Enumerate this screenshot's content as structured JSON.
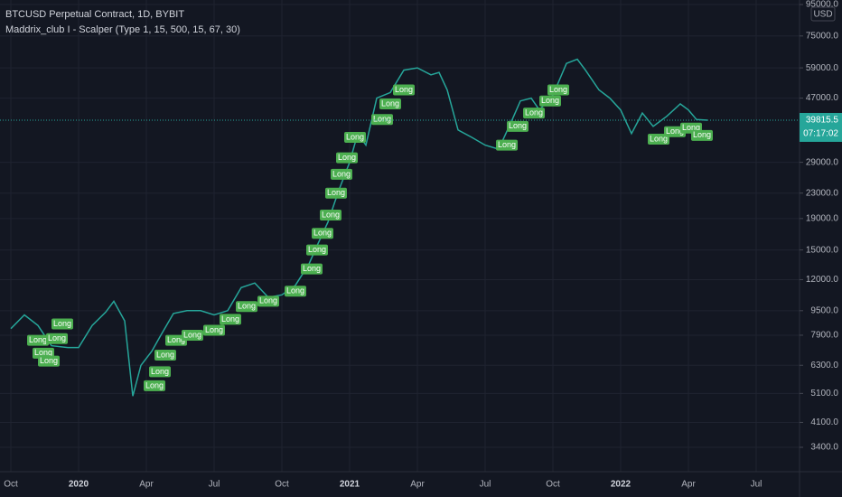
{
  "chart_data": {
    "type": "line",
    "title": "BTCUSD Perpetual Contract, 1D, BYBIT",
    "subtitle": "Maddrix_club I - Scalper (Type 1, 15, 500, 15, 67, 30)",
    "currency": "USD",
    "log_scale": true,
    "grid": true,
    "color": "#26a69a",
    "x": [
      2019.75,
      2019.8,
      2019.85,
      2019.9,
      2019.96,
      2020.0,
      2020.05,
      2020.1,
      2020.13,
      2020.17,
      2020.2,
      2020.23,
      2020.27,
      2020.3,
      2020.35,
      2020.4,
      2020.45,
      2020.5,
      2020.55,
      2020.6,
      2020.65,
      2020.7,
      2020.75,
      2020.8,
      2020.85,
      2020.88,
      2020.92,
      2020.96,
      2021.0,
      2021.03,
      2021.06,
      2021.1,
      2021.15,
      2021.2,
      2021.25,
      2021.3,
      2021.33,
      2021.36,
      2021.4,
      2021.45,
      2021.5,
      2021.55,
      2021.6,
      2021.63,
      2021.67,
      2021.7,
      2021.75,
      2021.8,
      2021.84,
      2021.87,
      2021.92,
      2021.96,
      2022.0,
      2022.04,
      2022.08,
      2022.12,
      2022.17,
      2022.22,
      2022.25,
      2022.28,
      2022.32
    ],
    "values": [
      8300,
      9200,
      8500,
      7300,
      7200,
      7200,
      8500,
      9400,
      10200,
      8800,
      5000,
      6300,
      7000,
      7800,
      9300,
      9500,
      9500,
      9200,
      9500,
      11300,
      11700,
      10500,
      10700,
      11500,
      13500,
      15500,
      18500,
      23500,
      29000,
      36000,
      33000,
      47000,
      49000,
      58000,
      59000,
      56000,
      57000,
      50000,
      37000,
      35000,
      33000,
      32000,
      40000,
      46000,
      47000,
      43000,
      48000,
      61000,
      63000,
      58000,
      50000,
      47000,
      43000,
      36000,
      42000,
      38000,
      41000,
      45000,
      43000,
      40000,
      39815.5
    ],
    "signals": {
      "label": "Long",
      "color": "#4caf50",
      "x": [
        2019.85,
        2019.87,
        2019.89,
        2019.92,
        2019.94,
        2020.28,
        2020.3,
        2020.32,
        2020.36,
        2020.42,
        2020.5,
        2020.56,
        2020.62,
        2020.7,
        2020.8,
        2020.86,
        2020.88,
        2020.9,
        2020.93,
        2020.95,
        2020.97,
        2020.99,
        2021.02,
        2021.12,
        2021.15,
        2021.2,
        2021.58,
        2021.62,
        2021.68,
        2021.74,
        2021.77,
        2022.14,
        2022.2,
        2022.26,
        2022.3
      ],
      "y": [
        7600,
        6900,
        6500,
        7700,
        8600,
        5400,
        6000,
        6800,
        7600,
        7900,
        8200,
        8900,
        9800,
        10200,
        11000,
        13000,
        15000,
        17000,
        19500,
        23000,
        26500,
        30000,
        35000,
        40000,
        45000,
        50000,
        33000,
        38000,
        42000,
        46000,
        50000,
        34500,
        36500,
        37500,
        35500
      ]
    },
    "current_price": 39815.5,
    "countdown": "07:17:02",
    "xlim": [
      2019.71,
      2022.66
    ],
    "xticks": [
      {
        "value": 2019.75,
        "label": "Oct"
      },
      2020,
      {
        "value": 2020.25,
        "label": "Apr"
      },
      {
        "value": 2020.5,
        "label": "Jul"
      },
      {
        "value": 2020.75,
        "label": "Oct"
      },
      2021,
      {
        "value": 2021.25,
        "label": "Apr"
      },
      {
        "value": 2021.5,
        "label": "Jul"
      },
      {
        "value": 2021.75,
        "label": "Oct"
      },
      2022,
      {
        "value": 2022.25,
        "label": "Apr"
      },
      {
        "value": 2022.5,
        "label": "Jul"
      }
    ],
    "ylim": [
      2830,
      98300
    ],
    "yticks": [
      {
        "value": 95000,
        "label": "95000.0"
      },
      {
        "value": 75000,
        "label": "75000.0"
      },
      {
        "value": 59000,
        "label": "59000.0"
      },
      {
        "value": 47000,
        "label": "47000.0"
      },
      {
        "value": 29000,
        "label": "29000.0"
      },
      {
        "value": 23000,
        "label": "23000.0"
      },
      {
        "value": 19000,
        "label": "19000.0"
      },
      {
        "value": 15000,
        "label": "15000.0"
      },
      {
        "value": 12000,
        "label": "12000.0"
      },
      {
        "value": 9500,
        "label": "9500.0"
      },
      {
        "value": 7900,
        "label": "7900.0"
      },
      {
        "value": 6300,
        "label": "6300.0"
      },
      {
        "value": 5100,
        "label": "5100.0"
      },
      {
        "value": 4100,
        "label": "4100.0"
      },
      {
        "value": 3400,
        "label": "3400.0"
      }
    ]
  }
}
